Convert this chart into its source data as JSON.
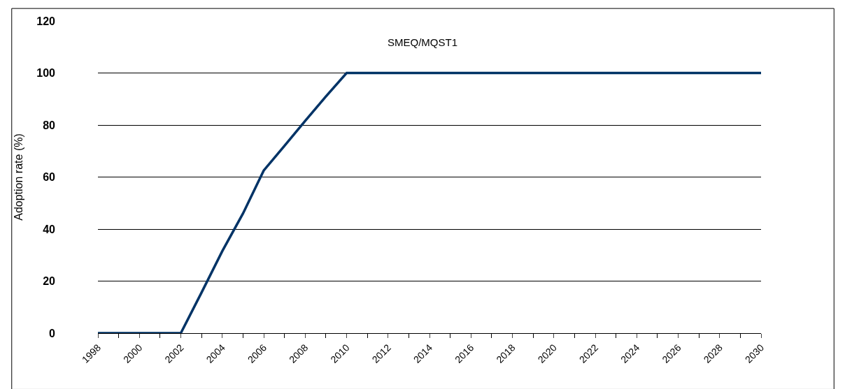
{
  "chart_data": {
    "type": "line",
    "title": "SMEQ/MQST1",
    "ylabel": "Adoption rate (%)",
    "x": [
      1998,
      1999,
      2000,
      2001,
      2002,
      2003,
      2004,
      2005,
      2006,
      2007,
      2008,
      2009,
      2010,
      2011,
      2012,
      2013,
      2014,
      2015,
      2016,
      2017,
      2018,
      2019,
      2020,
      2021,
      2022,
      2023,
      2024,
      2025,
      2026,
      2027,
      2028,
      2029,
      2030
    ],
    "series": [
      {
        "color": "#003366",
        "values": [
          0,
          0,
          0,
          0,
          0,
          15.6,
          31.5,
          46,
          62.5,
          72,
          81.6,
          91,
          100,
          100,
          100,
          100,
          100,
          100,
          100,
          100,
          100,
          100,
          100,
          100,
          100,
          100,
          100,
          100,
          100,
          100,
          100,
          100,
          100
        ]
      }
    ],
    "xlim": [
      1998,
      2030
    ],
    "xticks": [
      1998,
      2000,
      2002,
      2004,
      2006,
      2008,
      2010,
      2012,
      2014,
      2016,
      2018,
      2020,
      2022,
      2024,
      2026,
      2028,
      2030
    ],
    "ylim": [
      0,
      120
    ],
    "yticks": [
      0,
      20,
      40,
      60,
      80,
      100,
      120
    ],
    "grid": "y",
    "legend": false
  }
}
